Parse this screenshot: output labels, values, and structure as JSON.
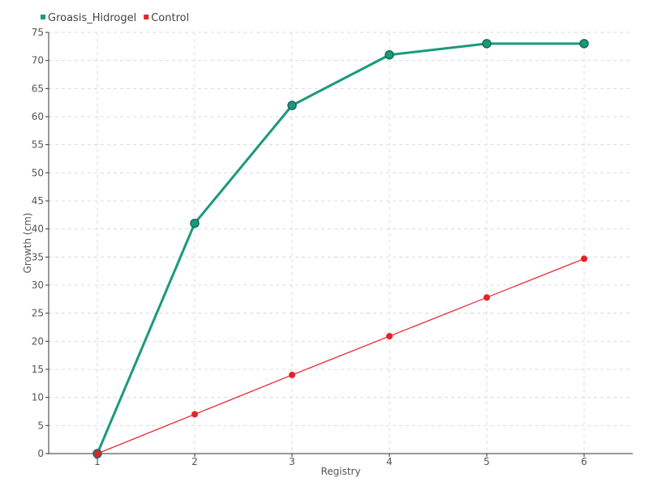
{
  "chart_data": {
    "type": "line",
    "title": "",
    "xlabel": "Registry",
    "ylabel": "Growth (cm)",
    "x": [
      1,
      2,
      3,
      4,
      5,
      6
    ],
    "xlim": [
      0.5,
      6.5
    ],
    "ylim": [
      0,
      75
    ],
    "ytick_step": 5,
    "grid": true,
    "legend_position": "top-left",
    "series": [
      {
        "name": "Groasis_Hidrogel",
        "color": "#1a9a7c",
        "values": [
          0,
          41,
          62,
          71,
          73,
          73
        ]
      },
      {
        "name": "Control",
        "color": "#e8202a",
        "values": [
          0,
          7,
          14,
          20.9,
          27.8,
          34.7
        ]
      }
    ]
  }
}
